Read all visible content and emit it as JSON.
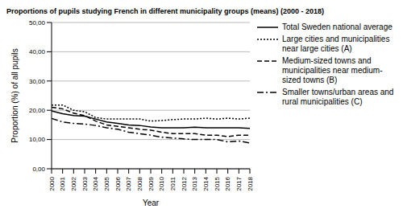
{
  "chart_data": {
    "type": "line",
    "title": "Proportions of pupils studying French in different municipality groups (means) (2000 - 2018)",
    "x_label": "Year",
    "y_label": "Proportion (%) of all pupils",
    "categories": [
      "2000",
      "2001",
      "2002",
      "2003",
      "2004",
      "2005",
      "2006",
      "2007",
      "2008",
      "2009",
      "2010",
      "2011",
      "2012",
      "2013",
      "2014",
      "2015",
      "2016",
      "2017",
      "2018"
    ],
    "series": [
      {
        "name": "Total Sweden national average",
        "color": "#000000",
        "line_style": "solid",
        "values": [
          19.8,
          18.8,
          18.2,
          18.0,
          17.0,
          16.0,
          15.5,
          15.0,
          14.8,
          14.3,
          14.0,
          14.0,
          14.0,
          14.2,
          14.0,
          14.0,
          14.0,
          14.0,
          13.8
        ]
      },
      {
        "name": "Large cities and municipalities near large cities (A)",
        "color": "#000000",
        "line_style": "dotted",
        "values": [
          21.8,
          21.8,
          20.0,
          19.5,
          17.5,
          17.0,
          17.0,
          17.0,
          17.0,
          16.3,
          16.5,
          16.8,
          17.0,
          17.0,
          17.3,
          17.0,
          17.3,
          17.0,
          17.3
        ]
      },
      {
        "name": "Medium-sized towns and municipalities near medium-sized towns (B)",
        "color": "#000000",
        "line_style": "dashed",
        "values": [
          21.0,
          20.5,
          19.0,
          18.2,
          16.3,
          15.0,
          14.5,
          14.0,
          13.5,
          13.2,
          12.5,
          12.0,
          12.0,
          12.0,
          11.5,
          11.5,
          11.0,
          11.5,
          11.5
        ]
      },
      {
        "name": "Smaller towns/urban areas and rural municipalities (C)",
        "color": "#000000",
        "line_style": "dashdot",
        "values": [
          17.2,
          16.0,
          15.5,
          15.3,
          14.8,
          14.0,
          13.5,
          12.5,
          12.0,
          11.5,
          10.8,
          10.5,
          10.2,
          10.0,
          10.0,
          10.0,
          9.2,
          9.5,
          8.8
        ]
      }
    ],
    "ylim": [
      0,
      50
    ],
    "yticks": [
      {
        "value": 0,
        "label": "0,00"
      },
      {
        "value": 10,
        "label": "10,00"
      },
      {
        "value": 20,
        "label": "20,00"
      },
      {
        "value": 30,
        "label": "30,00"
      },
      {
        "value": 40,
        "label": "40,00"
      },
      {
        "value": 50,
        "label": "50,00"
      }
    ],
    "grid": true,
    "legend": "right"
  }
}
